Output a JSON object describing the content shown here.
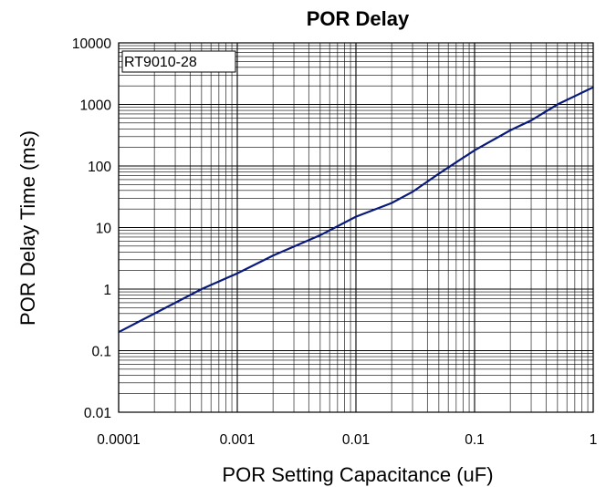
{
  "chart_data": {
    "type": "line",
    "title": "POR Delay",
    "xlabel": "POR Setting Capacitance (uF)",
    "ylabel": "POR Delay Time (ms)",
    "x_scale": "log",
    "y_scale": "log",
    "xlim": [
      0.0001,
      1
    ],
    "ylim": [
      0.01,
      10000
    ],
    "x_ticks": [
      "0.0001",
      "0.001",
      "0.01",
      "0.1",
      "1"
    ],
    "y_ticks": [
      "0.01",
      "0.1",
      "1",
      "10",
      "100",
      "1000",
      "10000"
    ],
    "grid": true,
    "annotation": "RT9010-28",
    "line_color": "#0a1a7a",
    "series": [
      {
        "points": [
          [
            0.0001,
            0.2
          ],
          [
            0.0002,
            0.4
          ],
          [
            0.0005,
            1.0
          ],
          [
            0.001,
            1.8
          ],
          [
            0.002,
            3.5
          ],
          [
            0.005,
            7.5
          ],
          [
            0.01,
            15
          ],
          [
            0.02,
            25
          ],
          [
            0.03,
            38
          ],
          [
            0.05,
            75
          ],
          [
            0.1,
            180
          ],
          [
            0.2,
            380
          ],
          [
            0.3,
            550
          ],
          [
            0.5,
            1000
          ],
          [
            1.0,
            1900
          ]
        ]
      }
    ]
  }
}
